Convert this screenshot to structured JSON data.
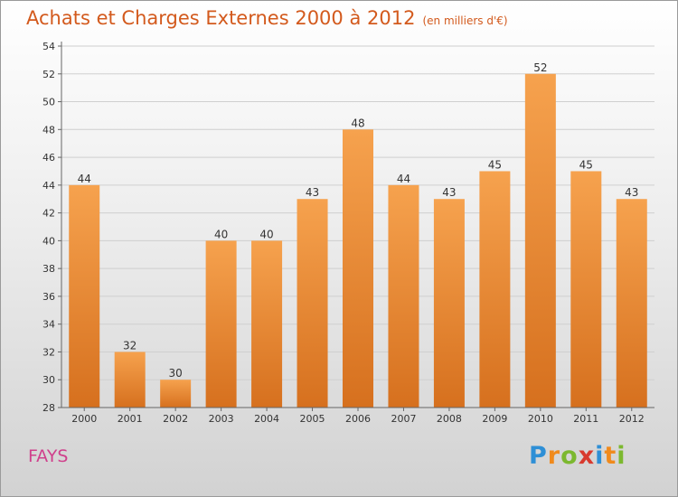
{
  "header": {
    "title": "Achats et Charges Externes 2000 à 2012",
    "subtitle": "(en milliers d'€)"
  },
  "commune": "FAYS",
  "logo": {
    "text": "Proxiti",
    "letters": [
      {
        "ch": "P",
        "color": "#2e8fd6"
      },
      {
        "ch": "r",
        "color": "#f08a1c"
      },
      {
        "ch": "o",
        "color": "#7cb82f"
      },
      {
        "ch": "x",
        "color": "#d83a2e"
      },
      {
        "ch": "i",
        "color": "#2e8fd6"
      },
      {
        "ch": "t",
        "color": "#f08a1c"
      },
      {
        "ch": "i",
        "color": "#7cb82f"
      }
    ]
  },
  "colors": {
    "bar_light": "#f6a24e",
    "bar_dark": "#d6701e",
    "axis": "#666666",
    "grid": "#cfcfcf"
  },
  "chart_data": {
    "type": "bar",
    "categories": [
      "2000",
      "2001",
      "2002",
      "2003",
      "2004",
      "2005",
      "2006",
      "2007",
      "2008",
      "2009",
      "2010",
      "2011",
      "2012"
    ],
    "values": [
      44,
      32,
      30,
      40,
      40,
      43,
      48,
      44,
      43,
      45,
      52,
      45,
      43
    ],
    "ylim": [
      28,
      54
    ],
    "yticks": [
      28,
      30,
      32,
      34,
      36,
      38,
      40,
      42,
      44,
      46,
      48,
      50,
      52,
      54
    ],
    "grid": true,
    "legend": "none"
  }
}
